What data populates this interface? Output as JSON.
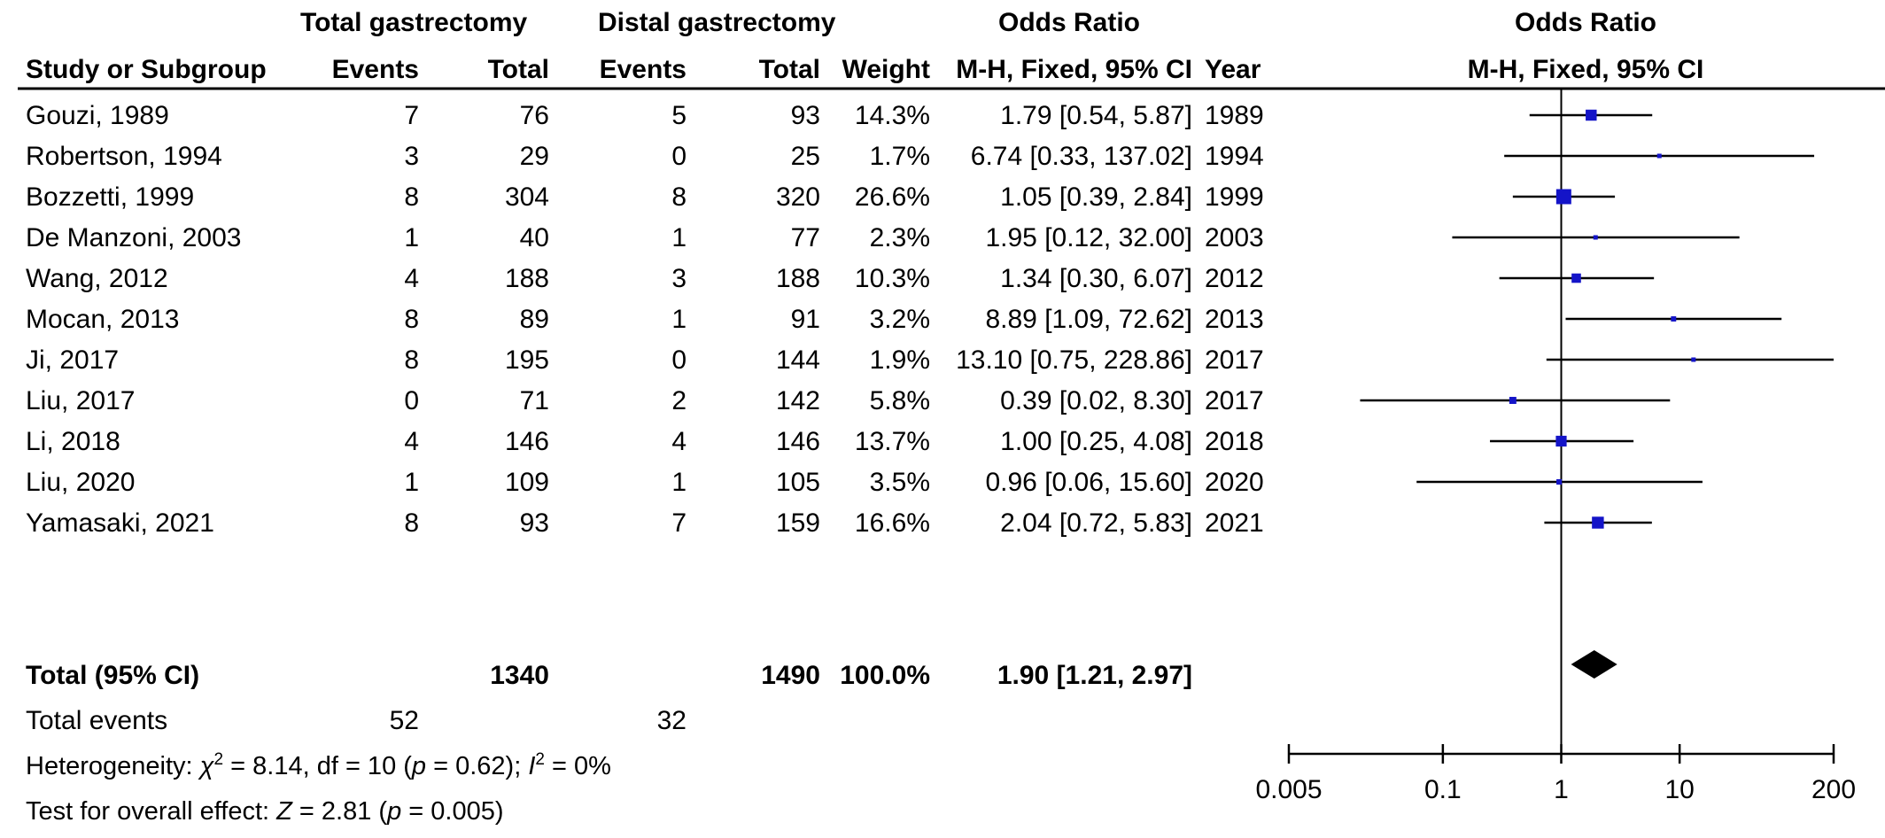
{
  "headers": {
    "group1": "Total gastrectomy",
    "group2": "Distal gastrectomy",
    "or_table": "Odds Ratio",
    "or_plot": "Odds Ratio",
    "study": "Study or Subgroup",
    "events1": "Events",
    "total1": "Total",
    "events2": "Events",
    "total2": "Total",
    "weight": "Weight",
    "method": "M-H, Fixed, 95% CI",
    "year": "Year",
    "method_plot": "M-H, Fixed, 95% CI"
  },
  "studies": [
    {
      "study": "Gouzi, 1989",
      "events1": "7",
      "total1": "76",
      "events2": "5",
      "total2": "93",
      "weight": "14.3%",
      "ci_text": "1.79 [0.54, 5.87]",
      "year": "1989"
    },
    {
      "study": "Robertson, 1994",
      "events1": "3",
      "total1": "29",
      "events2": "0",
      "total2": "25",
      "weight": "1.7%",
      "ci_text": "6.74 [0.33, 137.02]",
      "year": "1994"
    },
    {
      "study": "Bozzetti, 1999",
      "events1": "8",
      "total1": "304",
      "events2": "8",
      "total2": "320",
      "weight": "26.6%",
      "ci_text": "1.05 [0.39, 2.84]",
      "year": "1999"
    },
    {
      "study": "De Manzoni, 2003",
      "events1": "1",
      "total1": "40",
      "events2": "1",
      "total2": "77",
      "weight": "2.3%",
      "ci_text": "1.95 [0.12, 32.00]",
      "year": "2003"
    },
    {
      "study": "Wang, 2012",
      "events1": "4",
      "total1": "188",
      "events2": "3",
      "total2": "188",
      "weight": "10.3%",
      "ci_text": "1.34 [0.30, 6.07]",
      "year": "2012"
    },
    {
      "study": "Mocan, 2013",
      "events1": "8",
      "total1": "89",
      "events2": "1",
      "total2": "91",
      "weight": "3.2%",
      "ci_text": "8.89 [1.09, 72.62]",
      "year": "2013"
    },
    {
      "study": "Ji, 2017",
      "events1": "8",
      "total1": "195",
      "events2": "0",
      "total2": "144",
      "weight": "1.9%",
      "ci_text": "13.10 [0.75, 228.86]",
      "year": "2017"
    },
    {
      "study": "Liu, 2017",
      "events1": "0",
      "total1": "71",
      "events2": "2",
      "total2": "142",
      "weight": "5.8%",
      "ci_text": "0.39 [0.02, 8.30]",
      "year": "2017"
    },
    {
      "study": "Li, 2018",
      "events1": "4",
      "total1": "146",
      "events2": "4",
      "total2": "146",
      "weight": "13.7%",
      "ci_text": "1.00 [0.25, 4.08]",
      "year": "2018"
    },
    {
      "study": "Liu, 2020",
      "events1": "1",
      "total1": "109",
      "events2": "1",
      "total2": "105",
      "weight": "3.5%",
      "ci_text": "0.96 [0.06, 15.60]",
      "year": "2020"
    },
    {
      "study": "Yamasaki, 2021",
      "events1": "8",
      "total1": "93",
      "events2": "7",
      "total2": "159",
      "weight": "16.6%",
      "ci_text": "2.04 [0.72, 5.83]",
      "year": "2021"
    }
  ],
  "total": {
    "label": "Total (95% CI)",
    "total1": "1340",
    "total2": "1490",
    "weight": "100.0%",
    "ci_text": "1.90 [1.21, 2.97]"
  },
  "events": {
    "label": "Total events",
    "events1": "52",
    "events2": "32"
  },
  "heterogeneity": {
    "prefix": "Heterogeneity: ",
    "chi": "χ",
    "chi_exp": "2",
    "chi_rest": " = 8.14, df = 10 (",
    "p_sym": "p",
    "p_rest": " = 0.62); ",
    "i_sym": "I",
    "i_exp": "2",
    "i_rest": " = 0%"
  },
  "overall": {
    "prefix": "Test for overall effect: ",
    "z_sym": "Z",
    "z_rest": " = 2.81 (",
    "p_sym": "p",
    "p_rest": " = 0.005)"
  },
  "chart_data": {
    "type": "scatter",
    "subtype": "forest-plot",
    "title": "Odds Ratio",
    "xlabel": "M-H, Fixed, 95% CI",
    "x_scale": "log",
    "xlim": [
      0.005,
      200
    ],
    "ticks": [
      {
        "value": 0.005,
        "label": "0.005"
      },
      {
        "value": 0.1,
        "label": "0.1"
      },
      {
        "value": 1,
        "label": "1"
      },
      {
        "value": 10,
        "label": "10"
      },
      {
        "value": 200,
        "label": "200"
      }
    ],
    "reference_line": 1,
    "marker_color": "#1414c8",
    "studies": [
      {
        "name": "Gouzi, 1989",
        "or": 1.79,
        "lo": 0.54,
        "hi": 5.87,
        "weight": 14.3
      },
      {
        "name": "Robertson, 1994",
        "or": 6.74,
        "lo": 0.33,
        "hi": 137.02,
        "weight": 1.7
      },
      {
        "name": "Bozzetti, 1999",
        "or": 1.05,
        "lo": 0.39,
        "hi": 2.84,
        "weight": 26.6
      },
      {
        "name": "De Manzoni, 2003",
        "or": 1.95,
        "lo": 0.12,
        "hi": 32.0,
        "weight": 2.3
      },
      {
        "name": "Wang, 2012",
        "or": 1.34,
        "lo": 0.3,
        "hi": 6.07,
        "weight": 10.3
      },
      {
        "name": "Mocan, 2013",
        "or": 8.89,
        "lo": 1.09,
        "hi": 72.62,
        "weight": 3.2
      },
      {
        "name": "Ji, 2017",
        "or": 13.1,
        "lo": 0.75,
        "hi": 228.86,
        "weight": 1.9
      },
      {
        "name": "Liu, 2017",
        "or": 0.39,
        "lo": 0.02,
        "hi": 8.3,
        "weight": 5.8
      },
      {
        "name": "Li, 2018",
        "or": 1.0,
        "lo": 0.25,
        "hi": 4.08,
        "weight": 13.7
      },
      {
        "name": "Liu, 2020",
        "or": 0.96,
        "lo": 0.06,
        "hi": 15.6,
        "weight": 3.5
      },
      {
        "name": "Yamasaki, 2021",
        "or": 2.04,
        "lo": 0.72,
        "hi": 5.83,
        "weight": 16.6
      }
    ],
    "pooled": {
      "or": 1.9,
      "lo": 1.21,
      "hi": 2.97
    },
    "grid": false
  }
}
